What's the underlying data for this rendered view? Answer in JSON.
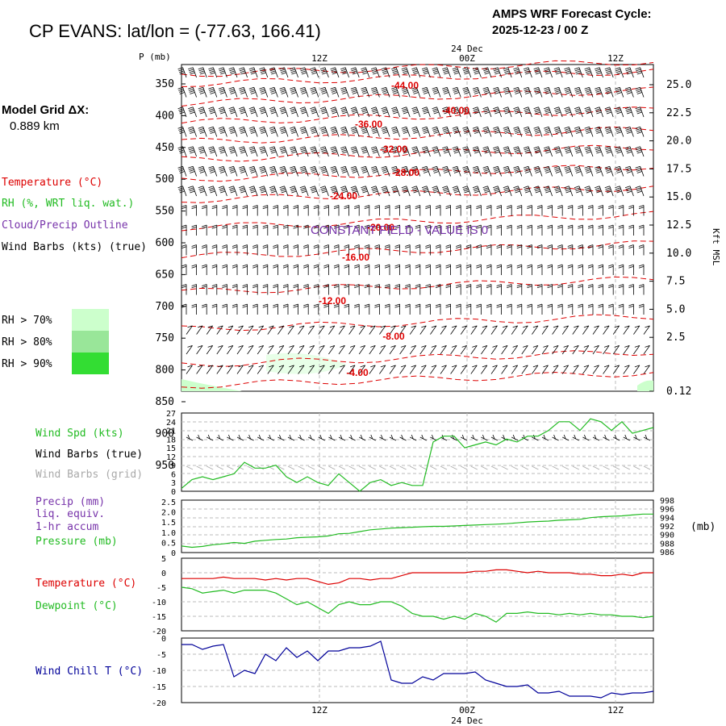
{
  "header": {
    "title": "CP EVANS:  lat/lon = (-77.63, 166.41)",
    "cycle_label": "AMPS WRF Forecast Cycle:",
    "cycle_value": "2025-12-23 / 00  Z",
    "grid_label": "Model Grid ΔX:",
    "grid_value": "0.889 km"
  },
  "colors": {
    "temperature": "#dd0000",
    "rh": "#22bb22",
    "cloud": "#7733aa",
    "wind": "#000000",
    "wind_grid": "#aaaaaa",
    "wind_chill": "#000099",
    "rh70": "#ccffcc",
    "rh80": "#99e699",
    "rh90": "#33dd33"
  },
  "chart_data": [
    {
      "type": "cross-section",
      "ylabel_left": "P (mb)",
      "ylabel_right": "Kft MSL",
      "pressure_ticks": [
        "350",
        "400",
        "450",
        "500",
        "550",
        "600",
        "650",
        "700",
        "750",
        "800",
        "850",
        "900",
        "950"
      ],
      "height_ticks": [
        "25.0",
        "22.5",
        "20.0",
        "17.5",
        "15.0",
        "12.5",
        "10.0",
        "7.5",
        "5.0",
        "2.5",
        "0.12"
      ],
      "time_ticks_top": [
        "12Z",
        "00Z",
        "12Z"
      ],
      "date_label": "24 Dec",
      "contour_labels": [
        "-44.00",
        "-40.00",
        "-36.00",
        "-32.00",
        "-28.00",
        "-24.00",
        "-20.00",
        "-16.00",
        "-12.00",
        "-8.00",
        "-4.00"
      ],
      "annotation": "CONSTANT FIELD - VALUE IS 0",
      "legend": {
        "temperature": "Temperature (°C)",
        "rh": "RH (%, WRT liq. wat.)",
        "cloud": "Cloud/Precip Outline",
        "wind": "Wind Barbs (kts) (true)",
        "rh70": "RH > 70%",
        "rh80": "RH > 80%",
        "rh90": "RH > 90%"
      }
    },
    {
      "type": "line",
      "legend": {
        "speed": "Wind Spd (kts)",
        "barbs_true": "Wind Barbs (true)",
        "barbs_grid": "Wind Barbs (grid)"
      },
      "yticks": [
        "27",
        "24",
        "21",
        "18",
        "15",
        "12",
        "9",
        "6",
        "3",
        "0"
      ],
      "ylim": [
        0,
        27
      ],
      "series": [
        {
          "name": "Wind Spd (kts)",
          "values": [
            1,
            4,
            5,
            4,
            5,
            6,
            10,
            8,
            8,
            9,
            5,
            3,
            5,
            3,
            2,
            6,
            3,
            0,
            3,
            4,
            2,
            3,
            2,
            2,
            17,
            19,
            19,
            15,
            16,
            17,
            16,
            18,
            17,
            19,
            19,
            21,
            24,
            24,
            21,
            25,
            24,
            21,
            24,
            20,
            21,
            22
          ]
        }
      ]
    },
    {
      "type": "line",
      "legend": {
        "precip": "Precip (mm)",
        "precip2": "liq. equiv.",
        "precip3": "1-hr accum",
        "pressure": "Pressure (mb)"
      },
      "yticks_left": [
        "2.5",
        "2.0",
        "1.5",
        "1.0",
        "0.5",
        "0"
      ],
      "yticks_right": [
        "998",
        "996",
        "994",
        "992",
        "990",
        "988",
        "986"
      ],
      "ylabel_right": "(mb)",
      "ylim": [
        986,
        998
      ],
      "series": [
        {
          "name": "Pressure (mb)",
          "values": [
            987.5,
            987.2,
            987.4,
            987.8,
            988.0,
            988.3,
            988.1,
            988.6,
            988.8,
            989.0,
            989.1,
            989.4,
            989.5,
            989.6,
            989.8,
            990.3,
            990.4,
            990.8,
            991.2,
            991.4,
            991.6,
            991.7,
            991.8,
            991.9,
            992.0,
            992.0,
            992.1,
            992.2,
            992.3,
            992.4,
            992.5,
            992.6,
            992.8,
            993.0,
            993.1,
            993.2,
            993.4,
            993.5,
            993.6,
            994.0,
            994.2,
            994.3,
            994.4,
            994.6,
            994.8,
            994.8
          ]
        }
      ]
    },
    {
      "type": "line",
      "legend": {
        "temperature": "Temperature (°C)",
        "dewpoint": "Dewpoint (°C)"
      },
      "yticks": [
        "5",
        "0",
        "-5",
        "-10",
        "-15",
        "-20"
      ],
      "ylim": [
        -20,
        5
      ],
      "series": [
        {
          "name": "Temperature (°C)",
          "values": [
            -2,
            -2,
            -2,
            -2,
            -1.5,
            -2,
            -2,
            -2,
            -2.5,
            -2,
            -2.5,
            -2,
            -2,
            -3,
            -4,
            -3.5,
            -2,
            -2,
            -2.5,
            -2,
            -2,
            -1,
            0,
            0,
            0,
            0,
            0,
            0,
            0.5,
            0.5,
            1,
            1,
            0.5,
            0,
            0.5,
            0,
            0,
            0,
            -0.5,
            -0.5,
            -1,
            -1,
            -0.5,
            -1,
            0,
            0
          ]
        },
        {
          "name": "Dewpoint (°C)",
          "values": [
            -5,
            -5.5,
            -7,
            -6.5,
            -6,
            -7,
            -6,
            -6,
            -6,
            -7,
            -9,
            -11,
            -10,
            -12,
            -14,
            -11,
            -10,
            -11,
            -11,
            -10,
            -10,
            -11.5,
            -14,
            -15,
            -15,
            -16,
            -15,
            -16,
            -14,
            -15,
            -17,
            -14,
            -14,
            -13.5,
            -14,
            -14,
            -14.5,
            -14,
            -14.5,
            -14,
            -14.5,
            -14.5,
            -15,
            -15,
            -15.5,
            -15
          ]
        }
      ]
    },
    {
      "type": "line",
      "legend": {
        "wind_chill": "Wind Chill T (°C)"
      },
      "yticks": [
        "0",
        "-5",
        "-10",
        "-15",
        "-20"
      ],
      "ylim": [
        -20,
        0
      ],
      "series": [
        {
          "name": "Wind Chill T (°C)",
          "values": [
            -2,
            -2,
            -3.5,
            -2.5,
            -2,
            -12,
            -10,
            -11,
            -5,
            -7,
            -3,
            -6,
            -4,
            -7,
            -4,
            -4,
            -3,
            -3,
            -2.5,
            -1,
            -13,
            -14,
            -14,
            -12,
            -13,
            -11,
            -11,
            -11,
            -10.5,
            -13,
            -14,
            -15,
            -15,
            -14.5,
            -17,
            -17,
            -16.5,
            -18,
            -18,
            -18,
            -18.5,
            -17,
            -17.5,
            -17,
            -17,
            -16.5
          ]
        }
      ]
    }
  ],
  "time_axis": {
    "ticks": [
      "12Z",
      "00Z",
      "12Z"
    ],
    "date": "24 Dec"
  }
}
